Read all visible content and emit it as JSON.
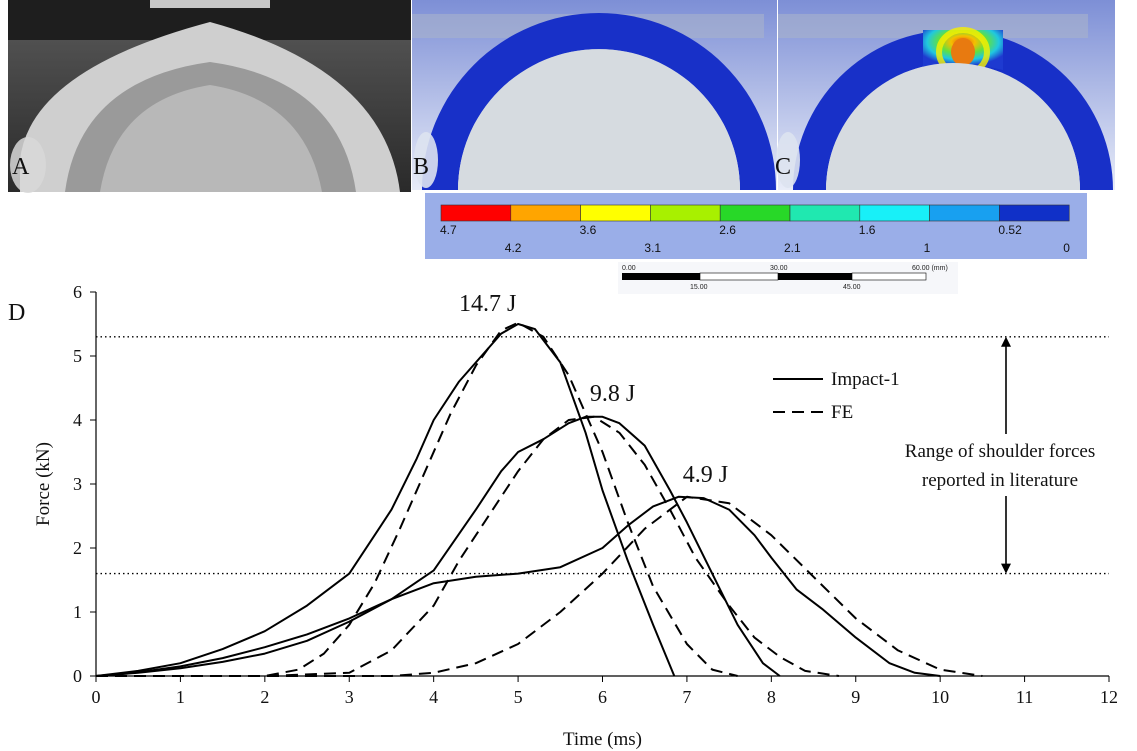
{
  "panels": {
    "a_label": "A",
    "b_label": "B",
    "c_label": "C",
    "d_label": "D"
  },
  "colorbar": {
    "colors": [
      "#ff0000",
      "#ffa500",
      "#ffff00",
      "#a8f000",
      "#28d828",
      "#20e8b0",
      "#18f0f8",
      "#18a0f0",
      "#1030c8"
    ],
    "labels_top": [
      "4.7",
      "3.6",
      "2.6",
      "1.6",
      "0.52"
    ],
    "labels_bottom": [
      "4.2",
      "3.1",
      "2.1",
      "1",
      "0"
    ]
  },
  "scalebar": {
    "labels_top": [
      "0.00",
      "30.00",
      "60.00 (mm)"
    ],
    "labels_bottom": [
      "15.00",
      "45.00"
    ]
  },
  "chart_data": {
    "type": "line",
    "xlabel": "Time (ms)",
    "ylabel": "Force (kN)",
    "xlim": [
      0,
      12
    ],
    "ylim": [
      0,
      6
    ],
    "xticks": [
      "0",
      "1",
      "2",
      "3",
      "4",
      "5",
      "6",
      "7",
      "8",
      "9",
      "10",
      "11",
      "12"
    ],
    "yticks": [
      "0",
      "1",
      "2",
      "3",
      "4",
      "5",
      "6"
    ],
    "grid": false,
    "legend": {
      "position": "right",
      "entries": [
        {
          "label": "Impact-1",
          "style": "solid"
        },
        {
          "label": "FE",
          "style": "dashed"
        }
      ]
    },
    "reference_lines": [
      {
        "y": 5.3,
        "style": "dotted"
      },
      {
        "y": 1.6,
        "style": "dotted"
      }
    ],
    "annotation": {
      "text_line1": "Range of shoulder forces",
      "text_line2": "reported in literature",
      "y_from": 1.6,
      "y_to": 5.3
    },
    "series": [
      {
        "group": "14.7 J",
        "style": "solid",
        "x": [
          0,
          0.5,
          1,
          1.5,
          2,
          2.5,
          3,
          3.5,
          3.8,
          4,
          4.3,
          4.5,
          4.8,
          5,
          5.2,
          5.5,
          5.8,
          6,
          6.3,
          6.6,
          6.85
        ],
        "y": [
          0,
          0.08,
          0.2,
          0.42,
          0.7,
          1.1,
          1.6,
          2.6,
          3.4,
          4.0,
          4.6,
          4.9,
          5.35,
          5.5,
          5.42,
          4.9,
          3.8,
          2.9,
          1.8,
          0.8,
          0
        ]
      },
      {
        "group": "14.7 J",
        "style": "dashed",
        "x": [
          0,
          1,
          2,
          2.4,
          2.7,
          3,
          3.3,
          3.6,
          3.9,
          4.2,
          4.5,
          4.8,
          5,
          5.3,
          5.6,
          6,
          6.3,
          6.6,
          7,
          7.3,
          7.6
        ],
        "y": [
          0,
          0,
          0,
          0.1,
          0.35,
          0.8,
          1.45,
          2.3,
          3.2,
          4.1,
          4.85,
          5.4,
          5.52,
          5.3,
          4.7,
          3.5,
          2.4,
          1.4,
          0.5,
          0.1,
          0
        ]
      },
      {
        "group": "9.8 J",
        "style": "solid",
        "x": [
          0,
          0.5,
          1,
          1.5,
          2,
          2.5,
          3,
          3.5,
          4,
          4.5,
          4.8,
          5,
          5.3,
          5.6,
          5.8,
          6,
          6.2,
          6.5,
          6.8,
          7,
          7.3,
          7.6,
          7.9,
          8.1
        ],
        "y": [
          0,
          0.05,
          0.12,
          0.22,
          0.35,
          0.55,
          0.85,
          1.2,
          1.65,
          2.6,
          3.2,
          3.5,
          3.7,
          3.95,
          4.05,
          4.05,
          3.95,
          3.6,
          2.9,
          2.4,
          1.6,
          0.8,
          0.2,
          0
        ]
      },
      {
        "group": "9.8 J",
        "style": "dashed",
        "x": [
          0,
          1,
          2,
          3,
          3.5,
          4,
          4.3,
          4.6,
          5,
          5.3,
          5.6,
          5.9,
          6.2,
          6.5,
          6.8,
          7.1,
          7.5,
          7.8,
          8.1,
          8.4,
          8.8
        ],
        "y": [
          0,
          0,
          0,
          0.05,
          0.4,
          1.1,
          1.8,
          2.4,
          3.2,
          3.7,
          4.0,
          4.05,
          3.8,
          3.3,
          2.6,
          1.85,
          1.1,
          0.6,
          0.3,
          0.08,
          0
        ]
      },
      {
        "group": "4.9 J",
        "style": "solid",
        "x": [
          0,
          0.5,
          1,
          1.5,
          2,
          2.5,
          3,
          3.5,
          4,
          4.5,
          5,
          5.5,
          6,
          6.3,
          6.6,
          6.9,
          7.2,
          7.5,
          7.8,
          8,
          8.3,
          8.6,
          9,
          9.4,
          9.7,
          10
        ],
        "y": [
          0,
          0.06,
          0.15,
          0.28,
          0.45,
          0.65,
          0.9,
          1.2,
          1.45,
          1.55,
          1.6,
          1.7,
          2.0,
          2.35,
          2.65,
          2.8,
          2.78,
          2.6,
          2.2,
          1.85,
          1.35,
          1.05,
          0.6,
          0.2,
          0.05,
          0
        ]
      },
      {
        "group": "4.9 J",
        "style": "dashed",
        "x": [
          0,
          2,
          3,
          3.5,
          4,
          4.5,
          5,
          5.5,
          6,
          6.5,
          7,
          7.5,
          8,
          8.5,
          9,
          9.5,
          10,
          10.5
        ],
        "y": [
          0,
          0,
          0,
          0,
          0.05,
          0.2,
          0.5,
          1.0,
          1.6,
          2.3,
          2.8,
          2.7,
          2.2,
          1.55,
          0.9,
          0.4,
          0.1,
          0
        ]
      }
    ],
    "labels": [
      {
        "text": "14.7 J",
        "x": 4.3,
        "y": 5.7
      },
      {
        "text": "9.8 J",
        "x": 5.85,
        "y": 4.3
      },
      {
        "text": "4.9 J",
        "x": 6.95,
        "y": 3.03
      }
    ]
  }
}
